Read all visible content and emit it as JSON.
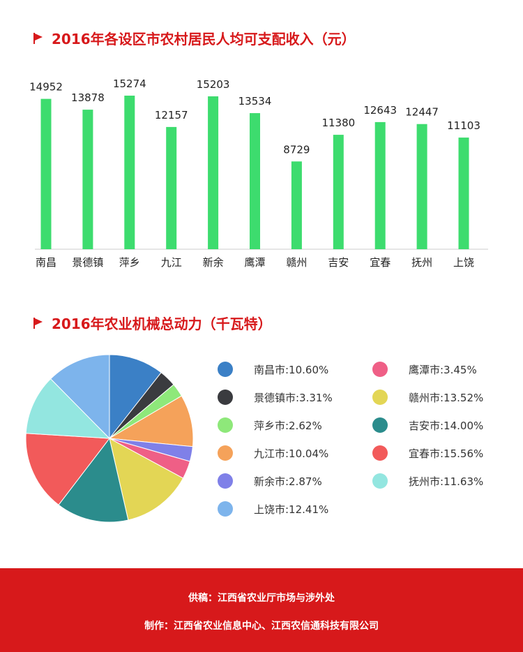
{
  "section1": {
    "title": "2016年各设区市农村居民人均可支配收入（元）"
  },
  "section2": {
    "title": "2016年农业机械总动力（千瓦特）"
  },
  "chart_data": [
    {
      "type": "bar",
      "title": "2016年各设区市农村居民人均可支配收入（元）",
      "categories": [
        "南昌",
        "景德镇",
        "萍乡",
        "九江",
        "新余",
        "鹰潭",
        "赣州",
        "吉安",
        "宜春",
        "抚州",
        "上饶"
      ],
      "values": [
        14952,
        13878,
        15274,
        12157,
        15203,
        13534,
        8729,
        11380,
        12643,
        12447,
        11103
      ],
      "color": "#3ddc6e",
      "grid": false
    },
    {
      "type": "pie",
      "title": "2016年农业机械总动力（千瓦特）",
      "slices": [
        {
          "name": "南昌市",
          "label": "南昌市:10.60%",
          "value": 10.6,
          "color": "#3b80c6"
        },
        {
          "name": "景德镇市",
          "label": "景德镇市:3.31%",
          "value": 3.31,
          "color": "#3a3b3f"
        },
        {
          "name": "萍乡市",
          "label": "萍乡市:2.62%",
          "value": 2.62,
          "color": "#8ee87a"
        },
        {
          "name": "九江市",
          "label": "九江市:10.04%",
          "value": 10.04,
          "color": "#f5a25a"
        },
        {
          "name": "新余市",
          "label": "新余市:2.87%",
          "value": 2.87,
          "color": "#7f80e8"
        },
        {
          "name": "鹰潭市",
          "label": "鹰潭市:3.45%",
          "value": 3.45,
          "color": "#ef5f86"
        },
        {
          "name": "赣州市",
          "label": "赣州市:13.52%",
          "value": 13.52,
          "color": "#e3d655"
        },
        {
          "name": "吉安市",
          "label": "吉安市:14.00%",
          "value": 14.0,
          "color": "#2b8c8c"
        },
        {
          "name": "宜春市",
          "label": "宜春市:15.56%",
          "value": 15.56,
          "color": "#f25a5a"
        },
        {
          "name": "抚州市",
          "label": "抚州市:11.63%",
          "value": 11.63,
          "color": "#93e6e0"
        },
        {
          "name": "上饶市",
          "label": "上饶市:12.41%",
          "value": 12.41,
          "color": "#7db4ec"
        }
      ]
    }
  ],
  "footer": {
    "line1": "供稿：江西省农业厅市场与涉外处",
    "line2": "制作：江西省农业信息中心、江西农信通科技有限公司"
  }
}
